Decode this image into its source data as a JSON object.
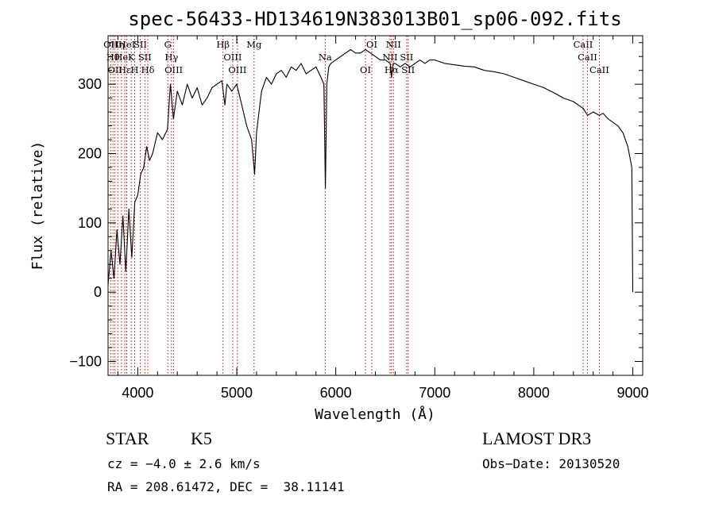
{
  "chart_data": {
    "type": "line",
    "title": "spec-56433-HD134619N383013B01_sp06-092.fits",
    "xlabel": "Wavelength (Å)",
    "ylabel": "Flux (relative)",
    "xlim": [
      3700,
      9100
    ],
    "ylim": [
      -120,
      370
    ],
    "x_ticks": [
      4000,
      5000,
      6000,
      7000,
      8000,
      9000
    ],
    "y_ticks": [
      -100,
      0,
      100,
      200,
      300
    ],
    "grid": false,
    "series": [
      {
        "color": "#000000",
        "x": [
          3700,
          3730,
          3760,
          3790,
          3820,
          3850,
          3880,
          3910,
          3940,
          3970,
          4000,
          4030,
          4060,
          4090,
          4120,
          4150,
          4200,
          4250,
          4300,
          4330,
          4360,
          4400,
          4450,
          4500,
          4550,
          4600,
          4650,
          4700,
          4750,
          4800,
          4850,
          4880,
          4900,
          4950,
          5000,
          5050,
          5100,
          5150,
          5180,
          5200,
          5250,
          5300,
          5350,
          5400,
          5450,
          5500,
          5550,
          5600,
          5650,
          5700,
          5750,
          5800,
          5850,
          5880,
          5895,
          5910,
          5930,
          5950,
          6000,
          6050,
          6100,
          6150,
          6200,
          6250,
          6300,
          6350,
          6400,
          6450,
          6500,
          6550,
          6563,
          6580,
          6600,
          6650,
          6700,
          6750,
          6800,
          6850,
          6900,
          6950,
          7000,
          7100,
          7200,
          7300,
          7400,
          7500,
          7600,
          7700,
          7800,
          7900,
          8000,
          8100,
          8200,
          8300,
          8400,
          8500,
          8542,
          8600,
          8662,
          8700,
          8750,
          8800,
          8850,
          8900,
          8950,
          8990,
          9000
        ],
        "y": [
          10,
          60,
          20,
          90,
          40,
          110,
          30,
          120,
          50,
          130,
          140,
          170,
          180,
          210,
          190,
          200,
          230,
          220,
          235,
          300,
          250,
          290,
          270,
          300,
          280,
          295,
          270,
          280,
          295,
          300,
          305,
          270,
          300,
          290,
          300,
          270,
          240,
          220,
          170,
          230,
          290,
          310,
          300,
          315,
          320,
          310,
          325,
          320,
          330,
          315,
          320,
          325,
          310,
          300,
          150,
          300,
          325,
          330,
          335,
          340,
          345,
          350,
          345,
          345,
          350,
          345,
          340,
          335,
          335,
          330,
          310,
          330,
          330,
          325,
          330,
          325,
          330,
          335,
          330,
          335,
          335,
          330,
          328,
          326,
          325,
          320,
          318,
          315,
          310,
          305,
          300,
          295,
          288,
          280,
          275,
          265,
          255,
          260,
          255,
          258,
          250,
          245,
          240,
          230,
          210,
          180,
          0
        ]
      }
    ],
    "line_markers": [
      {
        "wavelength": 3727,
        "label": "OII"
      },
      {
        "wavelength": 3750,
        "label": "Hθ"
      },
      {
        "wavelength": 3770,
        "label": "OII"
      },
      {
        "wavelength": 3798,
        "label": "Hη"
      },
      {
        "wavelength": 3835,
        "label": "He"
      },
      {
        "wavelength": 3869,
        "label": "Hε"
      },
      {
        "wavelength": 3889,
        "label": "HeI"
      },
      {
        "wavelength": 3934,
        "label": "K"
      },
      {
        "wavelength": 3969,
        "label": "H"
      },
      {
        "wavelength": 4026,
        "label": "SII"
      },
      {
        "wavelength": 4072,
        "label": "SII"
      },
      {
        "wavelength": 4102,
        "label": "Hδ"
      },
      {
        "wavelength": 4304,
        "label": "G"
      },
      {
        "wavelength": 4341,
        "label": "Hγ"
      },
      {
        "wavelength": 4363,
        "label": "OIII"
      },
      {
        "wavelength": 4861,
        "label": "Hβ"
      },
      {
        "wavelength": 4959,
        "label": "OIII"
      },
      {
        "wavelength": 5007,
        "label": "OIII"
      },
      {
        "wavelength": 5175,
        "label": "Mg"
      },
      {
        "wavelength": 5893,
        "label": "Na"
      },
      {
        "wavelength": 6300,
        "label": "OI"
      },
      {
        "wavelength": 6364,
        "label": "OI"
      },
      {
        "wavelength": 6548,
        "label": "NII"
      },
      {
        "wavelength": 6563,
        "label": "Hα"
      },
      {
        "wavelength": 6583,
        "label": "NII"
      },
      {
        "wavelength": 6716,
        "label": "SII"
      },
      {
        "wavelength": 6731,
        "label": "SII"
      },
      {
        "wavelength": 8498,
        "label": "CaII"
      },
      {
        "wavelength": 8542,
        "label": "CaII"
      },
      {
        "wavelength": 8662,
        "label": "CaII"
      }
    ]
  },
  "info": {
    "object_type": "STAR",
    "subclass": "K5",
    "survey": "LAMOST DR3",
    "cz_text": "cz = −4.0 ± 2.6 km/s",
    "obs_date_text": "Obs−Date: 20130520",
    "radec_text": "RA = 208.61472, DEC =  38.11141"
  }
}
